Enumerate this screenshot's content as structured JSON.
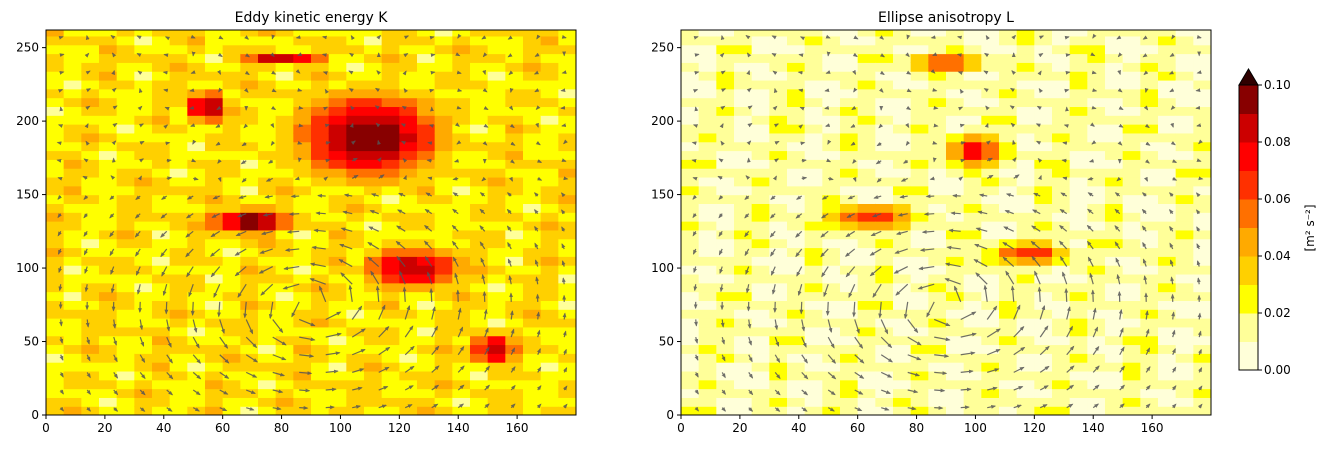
{
  "chart_data": [
    {
      "type": "heatmap",
      "title": "Eddy kinetic energy K",
      "xlabel": "",
      "ylabel": "",
      "xlim": [
        0,
        180
      ],
      "ylim": [
        0,
        262
      ],
      "xticks": [
        "0",
        "20",
        "40",
        "60",
        "80",
        "100",
        "120",
        "140",
        "160"
      ],
      "yticks": [
        "0",
        "50",
        "100",
        "150",
        "200",
        "250"
      ],
      "description_hidden": false,
      "features": [
        {
          "kind": "blob",
          "x": 110,
          "y": 190,
          "rx": 20,
          "ry": 24,
          "level": 0.1
        },
        {
          "kind": "blob",
          "x": 55,
          "y": 210,
          "rx": 6,
          "ry": 8,
          "level": 0.1
        },
        {
          "kind": "blob",
          "x": 70,
          "y": 132,
          "rx": 12,
          "ry": 7,
          "level": 0.1
        },
        {
          "kind": "blob",
          "x": 125,
          "y": 100,
          "rx": 14,
          "ry": 12,
          "level": 0.09
        },
        {
          "kind": "blob",
          "x": 152,
          "y": 45,
          "rx": 7,
          "ry": 9,
          "level": 0.09
        },
        {
          "kind": "blob",
          "x": 80,
          "y": 243,
          "rx": 12,
          "ry": 4,
          "level": 0.09
        }
      ],
      "vector_field": "quiver arrows",
      "grid": false
    },
    {
      "type": "heatmap",
      "title": "Ellipse anisotropy L",
      "xlabel": "",
      "ylabel": "",
      "xlim": [
        0,
        180
      ],
      "ylim": [
        0,
        262
      ],
      "xticks": [
        "0",
        "20",
        "40",
        "60",
        "80",
        "100",
        "120",
        "140",
        "160"
      ],
      "yticks": [
        "0",
        "50",
        "100",
        "150",
        "200",
        "250"
      ],
      "features": [
        {
          "kind": "blob",
          "x": 100,
          "y": 180,
          "rx": 7,
          "ry": 8,
          "level": 0.08
        },
        {
          "kind": "blob",
          "x": 90,
          "y": 240,
          "rx": 8,
          "ry": 4,
          "level": 0.08
        },
        {
          "kind": "blob",
          "x": 65,
          "y": 135,
          "rx": 12,
          "ry": 6,
          "level": 0.07
        },
        {
          "kind": "blob",
          "x": 118,
          "y": 110,
          "rx": 10,
          "ry": 6,
          "level": 0.07
        }
      ],
      "vector_field": "quiver arrows",
      "grid": false
    }
  ],
  "colorbar": {
    "label": "[m² s⁻²]",
    "ticks": [
      "0.00",
      "0.02",
      "0.04",
      "0.06",
      "0.08",
      "0.10"
    ],
    "range": [
      0,
      0.1
    ],
    "extend": "max",
    "levels": 10,
    "colors": [
      "#ffffd9",
      "#ffff99",
      "#ffff00",
      "#ffd000",
      "#ffaa00",
      "#ff7000",
      "#ff3000",
      "#ff0000",
      "#cc0000",
      "#880000",
      "#300000"
    ]
  }
}
